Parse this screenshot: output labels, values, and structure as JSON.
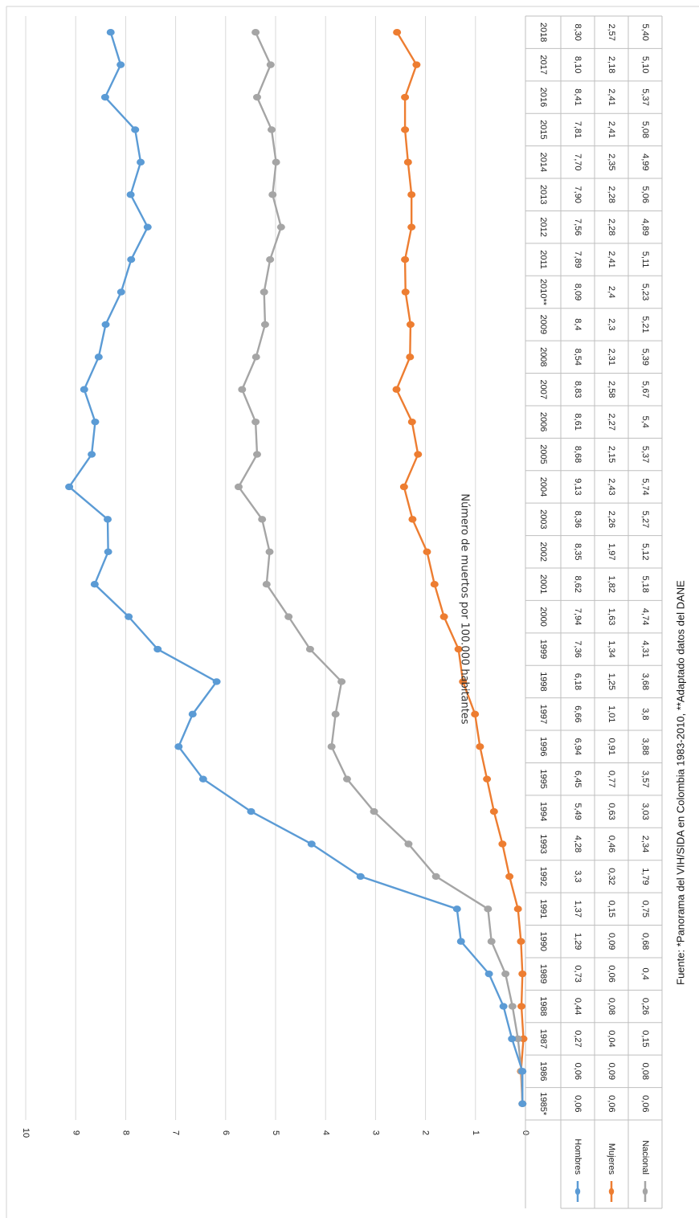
{
  "chart_data": {
    "type": "line",
    "categories": [
      "1985*",
      "1986",
      "1987",
      "1988",
      "1989",
      "1990",
      "1991",
      "1992",
      "1993",
      "1994",
      "1995",
      "1996",
      "1997",
      "1998",
      "1999",
      "2000",
      "2001",
      "2002",
      "2003",
      "2004",
      "2005",
      "2006",
      "2007",
      "2008",
      "2009",
      "2010**",
      "2011",
      "2012",
      "2013",
      "2014",
      "2015",
      "2016",
      "2017",
      "2018"
    ],
    "series": [
      {
        "name": "Hombres",
        "color": "#5b9bd5",
        "values": [
          0.06,
          0.06,
          0.27,
          0.44,
          0.73,
          1.29,
          1.37,
          3.3,
          4.28,
          5.49,
          6.45,
          6.94,
          6.66,
          6.18,
          7.36,
          7.94,
          8.62,
          8.35,
          8.36,
          9.13,
          8.68,
          8.61,
          8.83,
          8.54,
          8.4,
          8.09,
          7.89,
          7.56,
          7.9,
          7.7,
          7.81,
          8.41,
          8.1,
          8.3
        ],
        "labels": [
          "0,06",
          "0,06",
          "0,27",
          "0,44",
          "0,73",
          "1,29",
          "1,37",
          "3,3",
          "4,28",
          "5,49",
          "6,45",
          "6,94",
          "6,66",
          "6,18",
          "7,36",
          "7,94",
          "8,62",
          "8,35",
          "8,36",
          "9,13",
          "8,68",
          "8,61",
          "8,83",
          "8,54",
          "8,4",
          "8,09",
          "7,89",
          "7,56",
          "7,90",
          "7,70",
          "7,81",
          "8,41",
          "8,10",
          "8,30"
        ]
      },
      {
        "name": "Mujeres",
        "color": "#ed7d31",
        "values": [
          0.06,
          0.09,
          0.04,
          0.08,
          0.06,
          0.09,
          0.15,
          0.32,
          0.46,
          0.63,
          0.77,
          0.91,
          1.01,
          1.25,
          1.34,
          1.63,
          1.82,
          1.97,
          2.26,
          2.43,
          2.15,
          2.27,
          2.58,
          2.31,
          2.3,
          2.4,
          2.41,
          2.28,
          2.28,
          2.35,
          2.41,
          2.41,
          2.18,
          2.57
        ],
        "labels": [
          "0,06",
          "0,09",
          "0,04",
          "0,08",
          "0,06",
          "0,09",
          "0,15",
          "0,32",
          "0,46",
          "0,63",
          "0,77",
          "0,91",
          "1,01",
          "1,25",
          "1,34",
          "1,63",
          "1,82",
          "1,97",
          "2,26",
          "2,43",
          "2,15",
          "2,27",
          "2,58",
          "2,31",
          "2,3",
          "2,4",
          "2,41",
          "2,28",
          "2,28",
          "2,35",
          "2,41",
          "2,41",
          "2,18",
          "2,57"
        ]
      },
      {
        "name": "Nacional",
        "color": "#a5a5a5",
        "values": [
          0.06,
          0.08,
          0.15,
          0.26,
          0.4,
          0.68,
          0.75,
          1.79,
          2.34,
          3.03,
          3.57,
          3.88,
          3.8,
          3.68,
          4.31,
          4.74,
          5.18,
          5.12,
          5.27,
          5.74,
          5.37,
          5.4,
          5.67,
          5.39,
          5.21,
          5.23,
          5.11,
          4.89,
          5.06,
          4.99,
          5.08,
          5.37,
          5.1,
          5.4
        ],
        "labels": [
          "0,06",
          "0,08",
          "0,15",
          "0,26",
          "0,4",
          "0,68",
          "0,75",
          "1,79",
          "2,34",
          "3,03",
          "3,57",
          "3,88",
          "3,8",
          "3,68",
          "4,31",
          "4,74",
          "5,18",
          "5,12",
          "5,27",
          "5,74",
          "5,37",
          "5,4",
          "5,67",
          "5,39",
          "5,21",
          "5,23",
          "5,11",
          "4,89",
          "5,06",
          "4,99",
          "5,08",
          "5,37",
          "5,10",
          "5,40"
        ]
      }
    ],
    "ylabel": "Número de muertos por 100.000 habitantes",
    "yticks": [
      "0",
      "1",
      "2",
      "3",
      "4",
      "5",
      "6",
      "7",
      "8",
      "9",
      "10"
    ],
    "ylim": [
      0,
      10
    ],
    "grid": true,
    "legend": "data-table",
    "orientation": "rotated-90-clockwise"
  },
  "source_note": "Fuente: *Panorama del VIH/SIDA en Colombia 1983-2010, **Adaptado datos del DANE"
}
